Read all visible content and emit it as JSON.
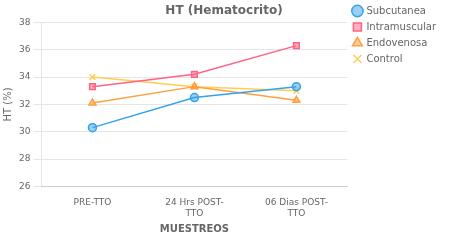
{
  "chart_data": {
    "type": "line",
    "title": "HT (Hematocrito)",
    "x_label": "MUESTREOS",
    "y_label": "HT (%)",
    "categories": [
      "PRE-TTO",
      "24 Hrs POST-\nTTO",
      "06 Dias POST-\nTTO"
    ],
    "series": [
      {
        "name": "Subcutanea",
        "values": [
          30.3,
          32.5,
          33.3
        ],
        "marker": "circle",
        "line_style": "solid"
      },
      {
        "name": "Intramuscular",
        "values": [
          33.3,
          34.2,
          36.3
        ],
        "marker": "square",
        "line_style": "solid"
      },
      {
        "name": "Endovenosa",
        "values": [
          32.1,
          33.3,
          32.3
        ],
        "marker": "triangle",
        "line_style": "solid"
      },
      {
        "name": "Control",
        "values": [
          34.0,
          33.3,
          33.0
        ],
        "marker": "x",
        "line_style": "solid"
      }
    ],
    "ylim": [
      26,
      38
    ],
    "yticks": [
      26,
      28,
      30,
      32,
      34,
      36,
      38
    ],
    "grid": true,
    "legend": "upper right"
  }
}
